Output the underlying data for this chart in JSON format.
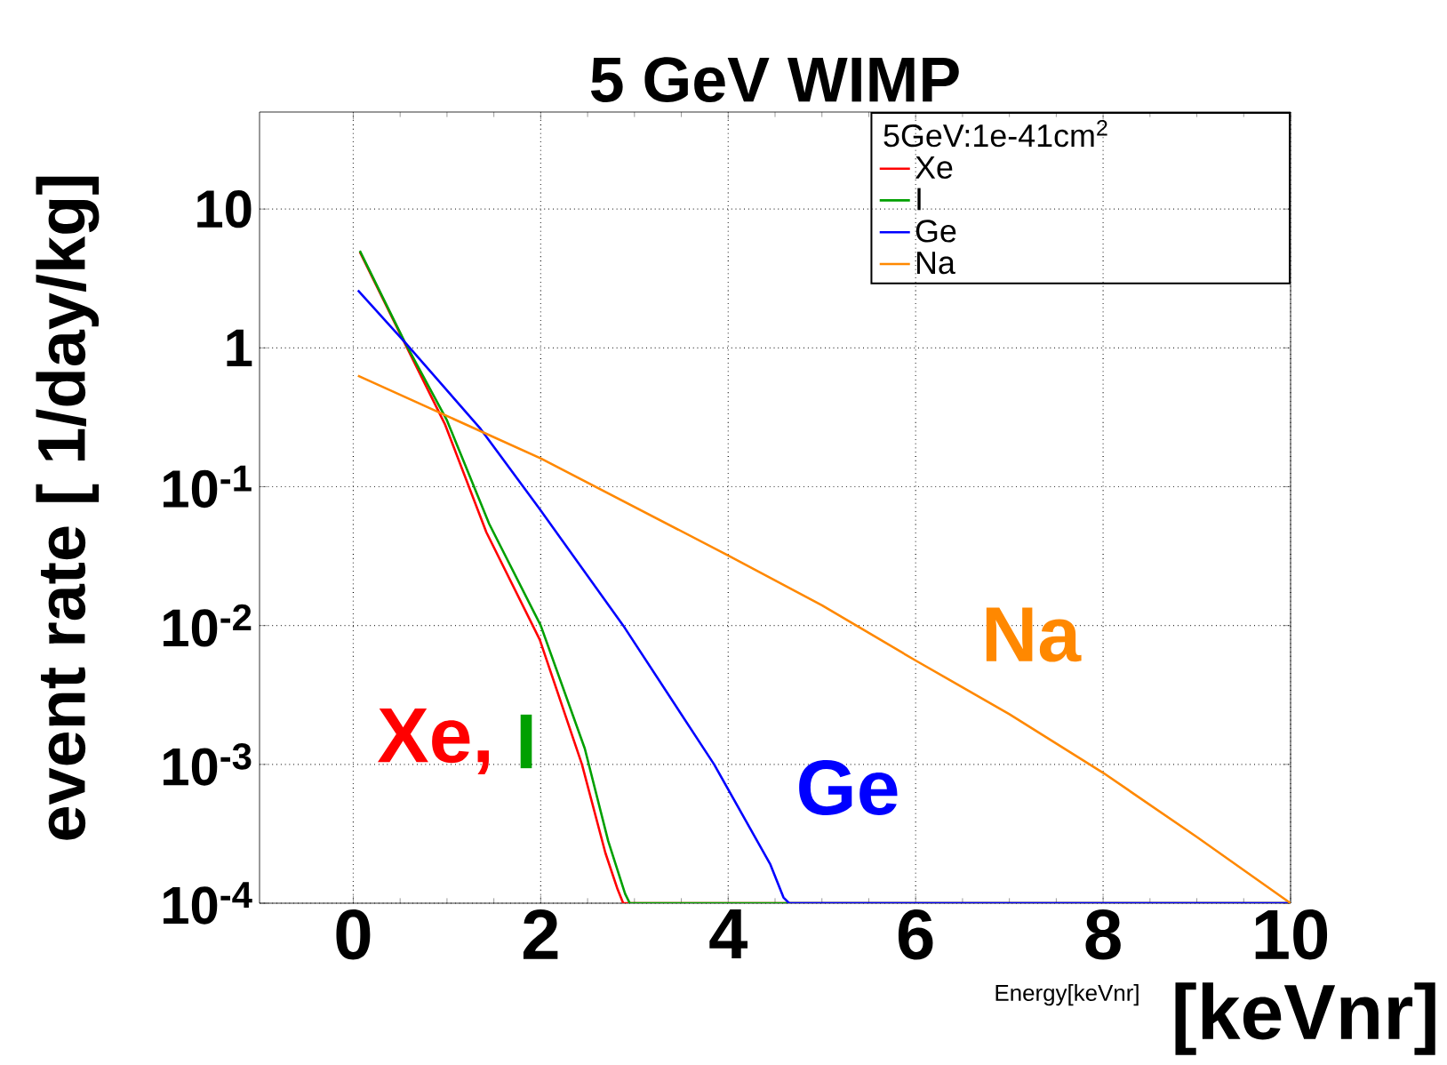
{
  "chart_data": {
    "type": "line",
    "title": "5 GeV WIMP",
    "xlabel": "Energy[keVnr]",
    "ylabel": "event rate [ 1/day/kg]",
    "legend_title": "5GeV:1e-41cm$^{2}$",
    "series": [
      {
        "name": "Xe",
        "color": "#ff0000",
        "x": [
          0.07,
          0.55,
          0.98,
          1.42,
          1.99,
          2.44,
          2.69,
          2.82,
          2.88,
          10
        ],
        "values": [
          4.9,
          1.08,
          0.28,
          0.047,
          0.0079,
          0.001,
          0.00023,
          0.000126,
          0.0001,
          0.0001
        ]
      },
      {
        "name": "I",
        "color": "#00a000",
        "x": [
          0.07,
          0.55,
          1.0,
          1.45,
          2.0,
          2.47,
          2.72,
          2.9,
          2.95,
          10
        ],
        "values": [
          5.0,
          1.1,
          0.3,
          0.054,
          0.01,
          0.0013,
          0.00028,
          0.000117,
          0.0001,
          0.0001
        ]
      },
      {
        "name": "Ge",
        "color": "#0000ff",
        "x": [
          0.05,
          0.55,
          1.36,
          1.99,
          2.88,
          3.85,
          4.45,
          4.59,
          4.65,
          10
        ],
        "values": [
          2.6,
          1.1,
          0.26,
          0.069,
          0.01,
          0.001,
          0.00019,
          0.00011,
          0.0001,
          0.0001
        ]
      },
      {
        "name": "Na",
        "color": "#ff8800",
        "x": [
          0.05,
          2,
          4,
          5,
          6,
          7,
          8,
          9,
          10
        ],
        "values": [
          0.63,
          0.16,
          0.032,
          0.014,
          0.0056,
          0.0023,
          0.00087,
          0.0003,
          0.0001
        ]
      }
    ],
    "xlim": [
      -1,
      10
    ],
    "xticks": [
      0,
      2,
      4,
      6,
      8,
      10
    ],
    "ylim": [
      0.0001,
      50
    ],
    "yticks": [
      {
        "value": 0.0001,
        "label": "10$^{-4}$"
      },
      {
        "value": 0.001,
        "label": "10$^{-3}$"
      },
      {
        "value": 0.01,
        "label": "10$^{-2}$"
      },
      {
        "value": 0.1,
        "label": "10$^{-1}$"
      },
      1,
      10
    ],
    "log": "y",
    "grid": true,
    "legend": "top right",
    "marker": "none",
    "line_style": "solid",
    "annotations": [
      "Xe,",
      "I",
      "Ge",
      "Na",
      "[keVnr]"
    ]
  }
}
